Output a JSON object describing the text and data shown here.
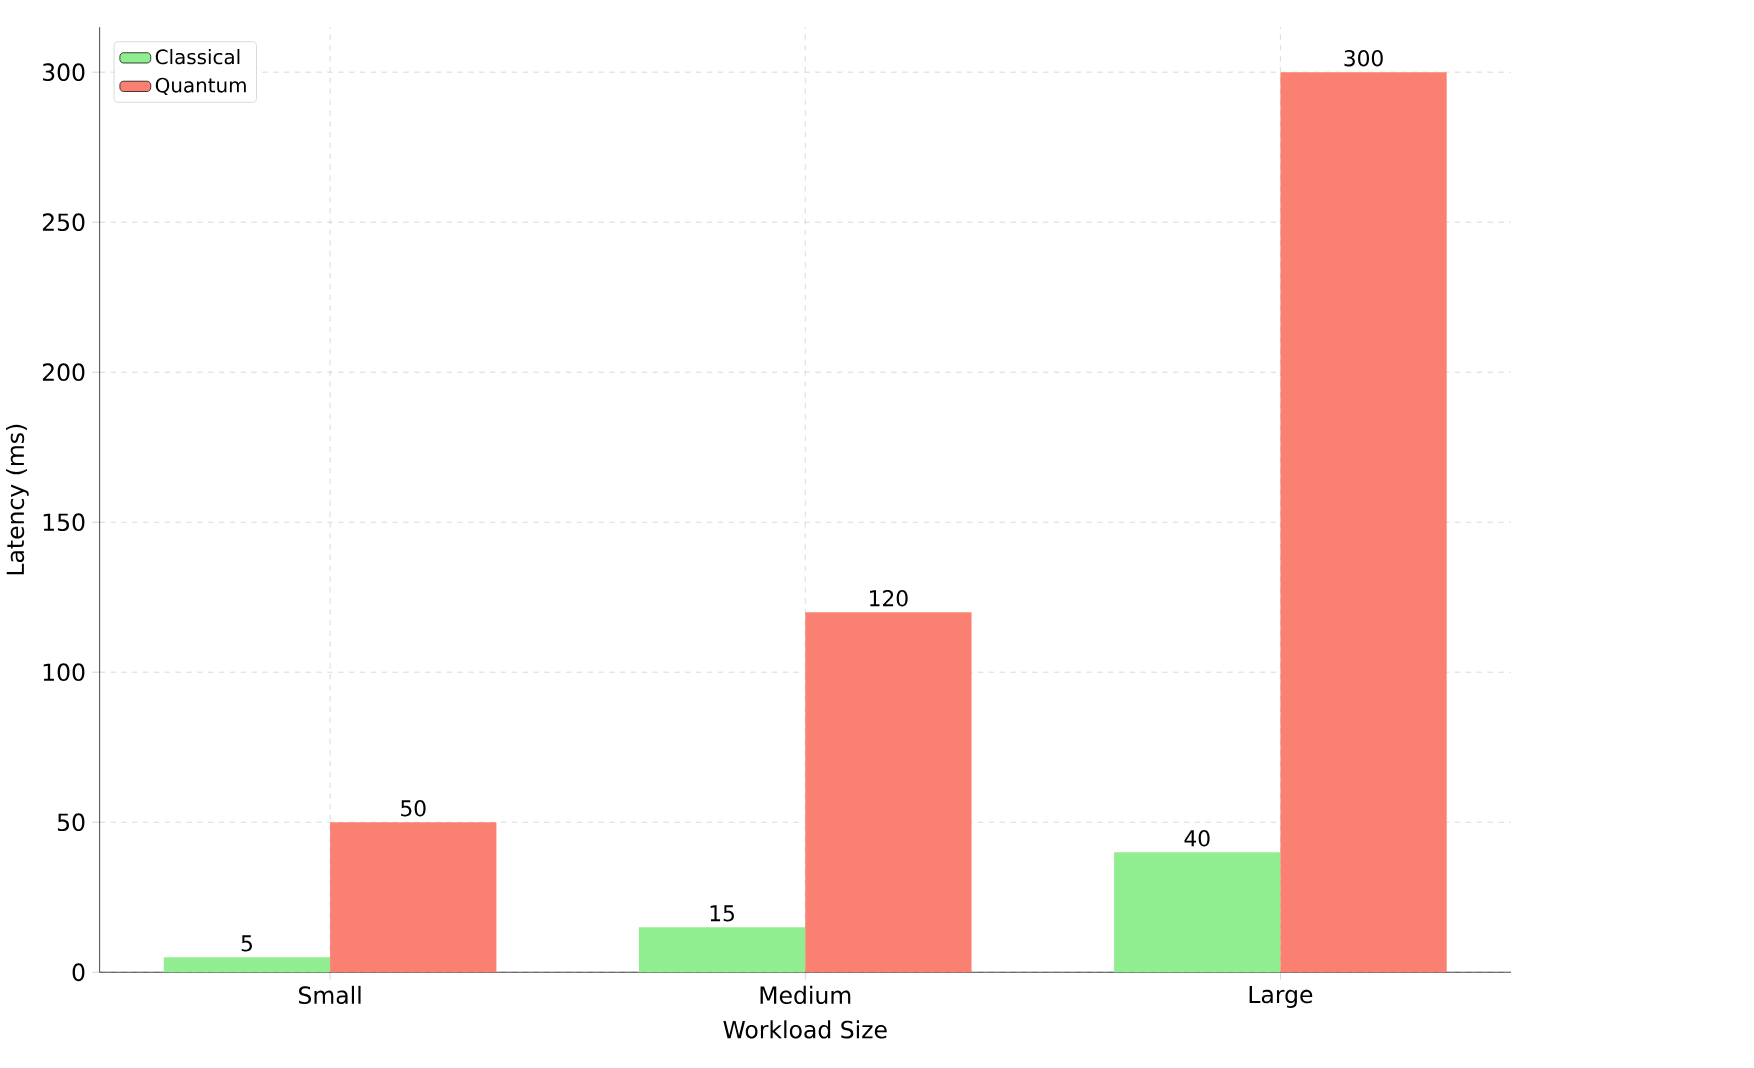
{
  "chart_data": {
    "type": "bar",
    "xlabel": "Workload Size",
    "ylabel": "Latency (ms)",
    "categories": [
      "Small",
      "Medium",
      "Large"
    ],
    "series": [
      {
        "name": "Classical",
        "color": "#90ee90",
        "values": [
          5,
          15,
          40
        ]
      },
      {
        "name": "Quantum",
        "color": "#fa8072",
        "values": [
          50,
          120,
          300
        ]
      }
    ],
    "ylim": [
      0,
      315
    ],
    "yticks": [
      0,
      50,
      100,
      150,
      200,
      250,
      300
    ],
    "grid": true,
    "legend": "top left",
    "data_labels": true
  }
}
